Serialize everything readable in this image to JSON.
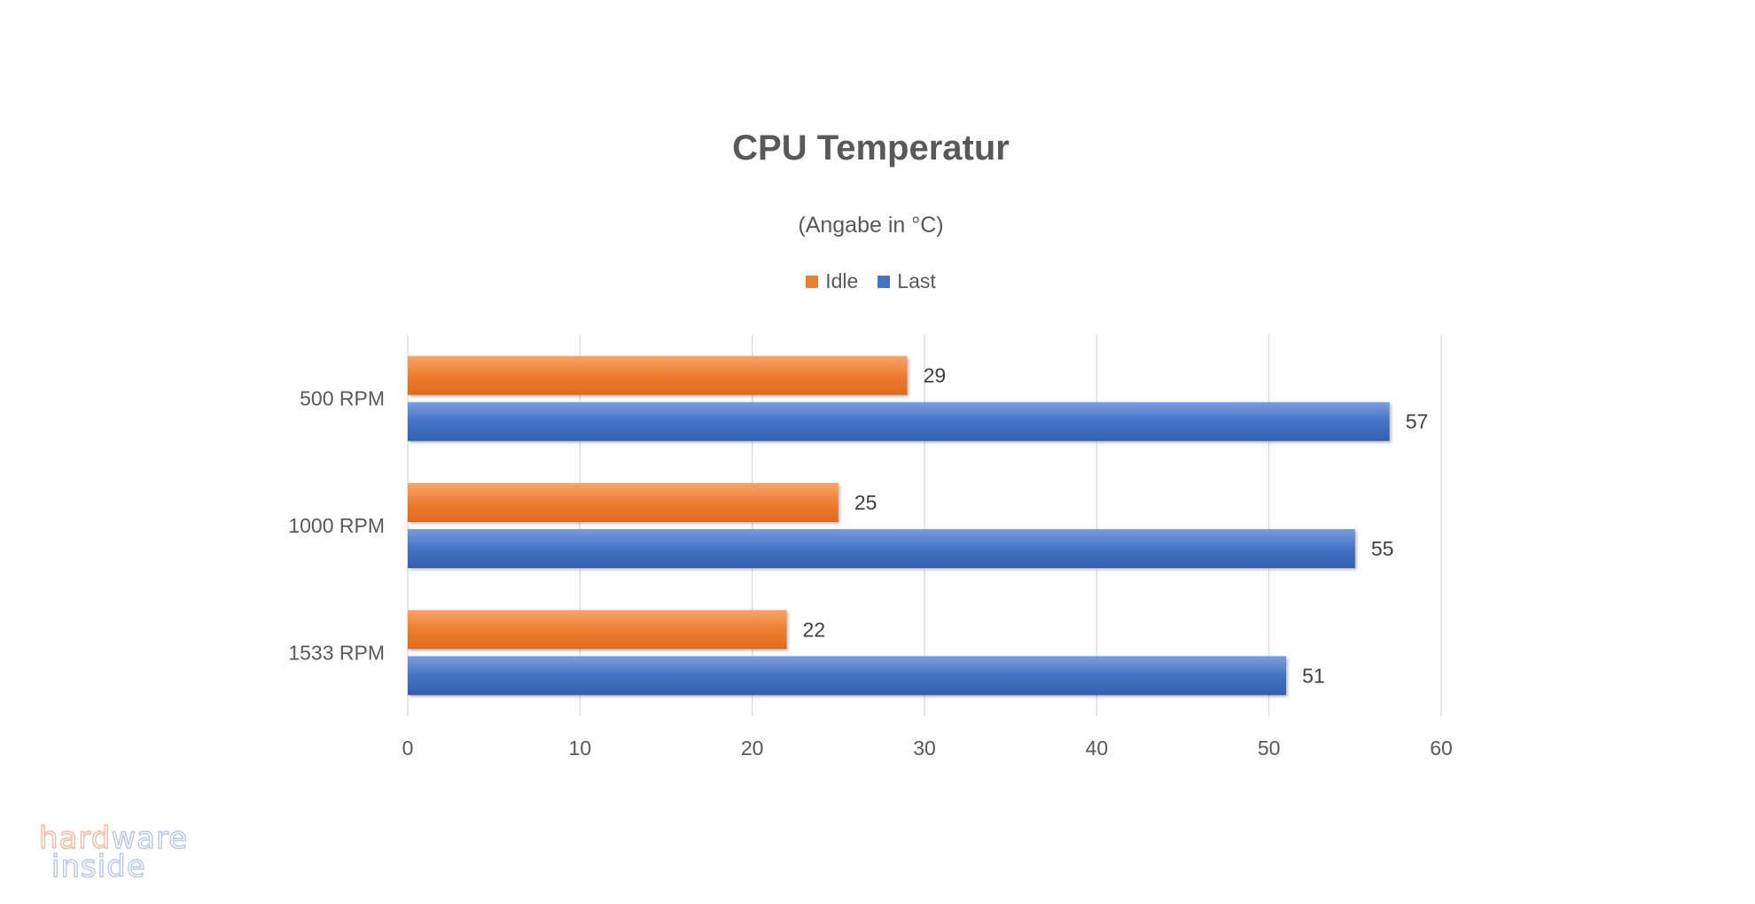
{
  "chart_data": {
    "type": "bar",
    "orientation": "horizontal",
    "title": "CPU Temperatur",
    "subtitle": "(Angabe in °C)",
    "categories": [
      "500 RPM",
      "1000 RPM",
      "1533 RPM"
    ],
    "series": [
      {
        "name": "Idle",
        "values": [
          29,
          25,
          22
        ],
        "color": "#ED7D31"
      },
      {
        "name": "Last",
        "values": [
          57,
          55,
          51
        ],
        "color": "#4472C4"
      }
    ],
    "xlim": [
      0,
      60
    ],
    "xticks": [
      0,
      10,
      20,
      30,
      40,
      50,
      60
    ],
    "grid": "vertical",
    "legend_position": "top",
    "data_labels": true
  },
  "watermark": {
    "line1": "hardware",
    "line2": "inside"
  }
}
